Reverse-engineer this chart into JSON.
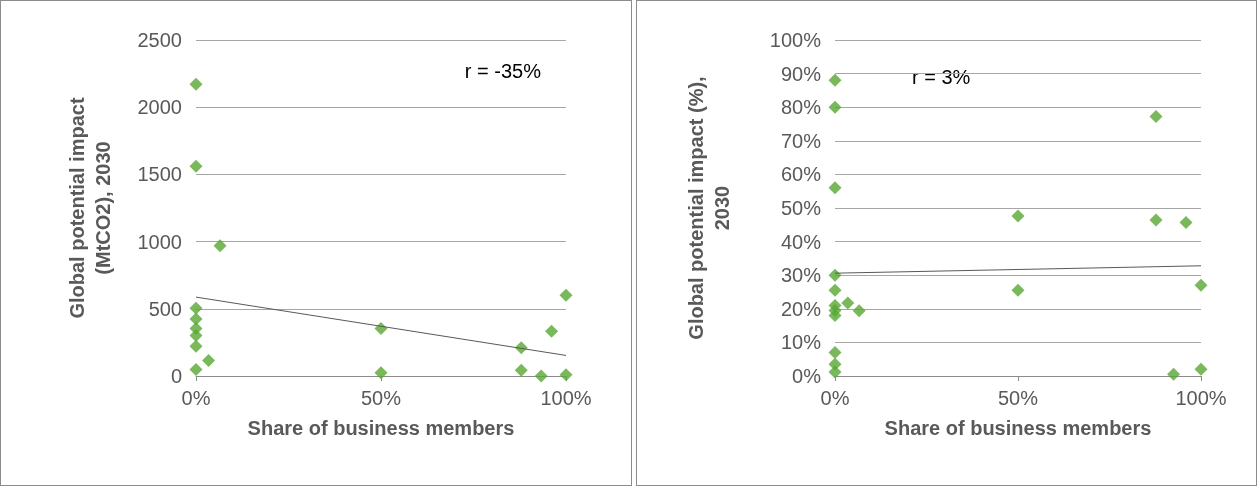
{
  "chart_data": [
    {
      "type": "scatter",
      "xlabel": "Share of business members",
      "ylabel": "Global potential impact (MtCO2), 2030",
      "annotations": [
        "r = -35%"
      ],
      "xlim": [
        0,
        100
      ],
      "xticks": [
        {
          "value": 0,
          "label": "0%"
        },
        {
          "value": 50,
          "label": "50%"
        },
        {
          "value": 100,
          "label": "100%"
        }
      ],
      "ylim": [
        0,
        2500
      ],
      "yticks": [
        0,
        500,
        1000,
        1500,
        2000,
        2500
      ],
      "grid": "y",
      "marker": "diamond",
      "series": [
        {
          "color": "#58a832",
          "x": [
            0,
            0,
            6.5,
            0,
            0,
            0,
            0,
            0,
            0,
            3.4,
            50,
            50,
            87.9,
            87.9,
            93.3,
            96.1,
            100,
            100
          ],
          "values": [
            2170,
            1560,
            970,
            505,
            424,
            353,
            301,
            222,
            49,
            116,
            353,
            25,
            210,
            42,
            0,
            333,
            600,
            10
          ]
        },
        {
          "type": "line",
          "color": "#595959",
          "marker": "none",
          "x": [
            0,
            100
          ],
          "values": [
            587,
            153
          ]
        }
      ]
    },
    {
      "type": "scatter",
      "xlabel": "Share of business members",
      "ylabel": "Global potential impact (%), 2030",
      "annotations": [
        "r = 3%"
      ],
      "xlim": [
        0,
        100
      ],
      "xticks": [
        {
          "value": 0,
          "label": "0%"
        },
        {
          "value": 50,
          "label": "50%"
        },
        {
          "value": 100,
          "label": "100%"
        }
      ],
      "ylim": [
        0,
        100
      ],
      "yticks": [
        {
          "value": 0,
          "label": "0%"
        },
        {
          "value": 10,
          "label": "10%"
        },
        {
          "value": 20,
          "label": "20%"
        },
        {
          "value": 30,
          "label": "30%"
        },
        {
          "value": 40,
          "label": "40%"
        },
        {
          "value": 50,
          "label": "50%"
        },
        {
          "value": 60,
          "label": "60%"
        },
        {
          "value": 70,
          "label": "70%"
        },
        {
          "value": 80,
          "label": "80%"
        },
        {
          "value": 90,
          "label": "90%"
        },
        {
          "value": 100,
          "label": "100%"
        }
      ],
      "grid": "y",
      "marker": "diamond",
      "series": [
        {
          "color": "#58a832",
          "x": [
            0,
            0,
            0,
            0,
            0,
            0,
            0,
            0,
            0,
            0,
            0,
            3.5,
            6.6,
            50,
            50,
            87.7,
            87.7,
            95.9,
            100,
            92.5,
            100
          ],
          "values": [
            88,
            80,
            56,
            30,
            25.5,
            21,
            19.5,
            18,
            7,
            3.5,
            1.2,
            21.7,
            19.4,
            47.6,
            25.5,
            77.2,
            46.4,
            45.7,
            27,
            0.5,
            2
          ]
        },
        {
          "type": "line",
          "color": "#595959",
          "marker": "none",
          "x": [
            0,
            100
          ],
          "values": [
            30.6,
            32.8
          ]
        }
      ]
    }
  ]
}
